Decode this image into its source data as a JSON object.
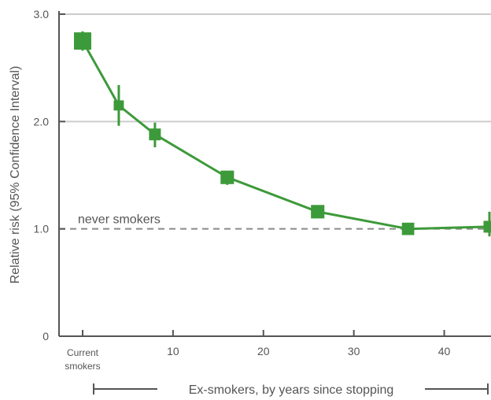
{
  "chart_data": {
    "type": "line",
    "title": "",
    "ylabel": "Relative risk (95% Confidence Interval)",
    "xlabel": "Ex-smokers, by years since stopping",
    "ylim": [
      0,
      3.0
    ],
    "xlim": [
      -3,
      45
    ],
    "y_ticks": [
      {
        "value": 0,
        "label": "0"
      },
      {
        "value": 1.0,
        "label": "1.0"
      },
      {
        "value": 2.0,
        "label": "2.0"
      },
      {
        "value": 3.0,
        "label": "3.0"
      }
    ],
    "x_ticks": [
      {
        "value": 0,
        "label": "Current smokers"
      },
      {
        "value": 10,
        "label": "10"
      },
      {
        "value": 20,
        "label": "20"
      },
      {
        "value": 30,
        "label": "30"
      },
      {
        "value": 40,
        "label": "40"
      }
    ],
    "current_smokers_label": [
      "Current",
      "smokers"
    ],
    "grid": true,
    "reference_line": {
      "y": 1.0,
      "label": "never smokers"
    },
    "series": [
      {
        "points": [
          {
            "x": 0,
            "y": 2.75,
            "lo": 2.66,
            "hi": 2.84,
            "weight": 1.0
          },
          {
            "x": 4,
            "y": 2.15,
            "lo": 1.96,
            "hi": 2.34,
            "weight": 0.35
          },
          {
            "x": 8,
            "y": 1.88,
            "lo": 1.76,
            "hi": 1.99,
            "weight": 0.5
          },
          {
            "x": 16,
            "y": 1.48,
            "lo": 1.41,
            "hi": 1.54,
            "weight": 0.65
          },
          {
            "x": 26,
            "y": 1.16,
            "lo": 1.1,
            "hi": 1.21,
            "weight": 0.65
          },
          {
            "x": 36,
            "y": 1.0,
            "lo": 0.95,
            "hi": 1.04,
            "weight": 0.55
          },
          {
            "x": 45,
            "y": 1.02,
            "lo": 0.93,
            "hi": 1.16,
            "weight": 0.5
          }
        ]
      }
    ],
    "colors": {
      "series": "#3d9a3a",
      "grid": "#cccccc",
      "axis": "#555555",
      "reference": "#8a8a8a"
    }
  }
}
